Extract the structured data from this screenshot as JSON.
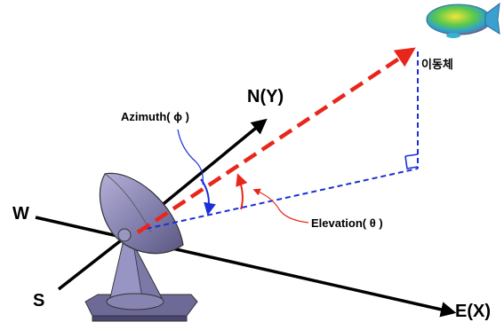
{
  "labels": {
    "north": "N(Y)",
    "east": "E(X)",
    "west": "W",
    "south": "S",
    "target": "이동체",
    "azimuth": "Azimuth( ϕ )",
    "elevation": "Elevation( θ )"
  },
  "colors": {
    "axis": "#000000",
    "line_of_sight": "#e8261c",
    "projection": "#1a2fd6",
    "dish": "#8a86b4",
    "angle_arc": "#e8261c",
    "azimuth_arc": "#1a2fd6"
  },
  "icons": {
    "target": "airship-icon",
    "antenna": "satellite-dish-icon"
  }
}
